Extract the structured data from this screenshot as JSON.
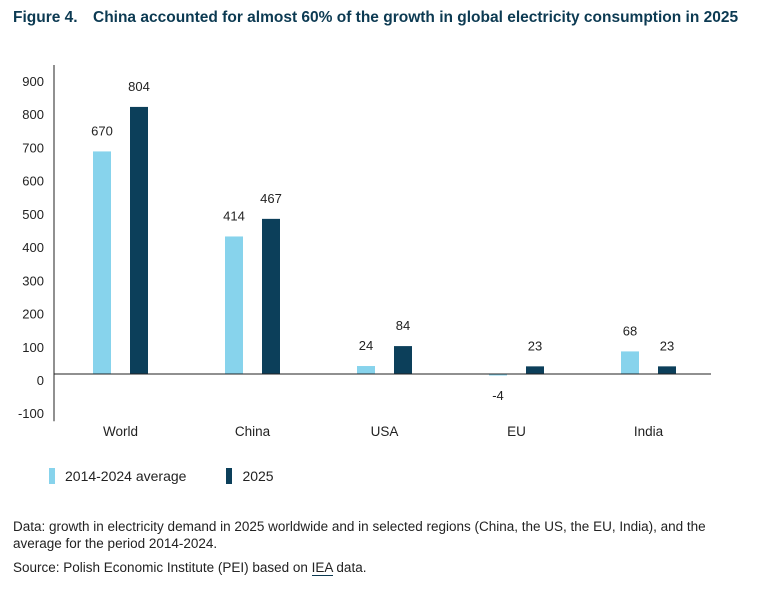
{
  "figure": {
    "number_label": "Figure 4.",
    "title": "China accounted for almost 60% of the growth in global electricity consumption in 2025"
  },
  "legend": [
    {
      "label": "2014-2024 average",
      "color": "#87d3ec"
    },
    {
      "label": "2025",
      "color": "#0c3f5a"
    }
  ],
  "footnote": {
    "data_note": "Data: growth in electricity demand in 2025 worldwide and in selected regions (China, the US, the EU, India), and the average for the period 2014-2024.",
    "source_prefix": "Source: Polish Economic Institute (PEI) based on ",
    "source_link": "IEA",
    "source_suffix": " data."
  },
  "chart_data": {
    "type": "bar",
    "title": "China accounted for almost 60% of the growth in global electricity consumption in 2025",
    "xlabel": "",
    "ylabel": "",
    "categories": [
      "World",
      "China",
      "USA",
      "EU",
      "India"
    ],
    "series": [
      {
        "name": "2014-2024 average",
        "color": "#87d3ec",
        "values": [
          670,
          414,
          24,
          -4,
          68
        ]
      },
      {
        "name": "2025",
        "color": "#0c3f5a",
        "values": [
          804,
          467,
          84,
          23,
          23
        ]
      }
    ],
    "ylim": [
      -100,
      900
    ],
    "yticks": [
      900,
      800,
      700,
      600,
      500,
      400,
      300,
      200,
      100,
      0,
      -100
    ],
    "grid": false,
    "legend_position": "bottom-left"
  }
}
